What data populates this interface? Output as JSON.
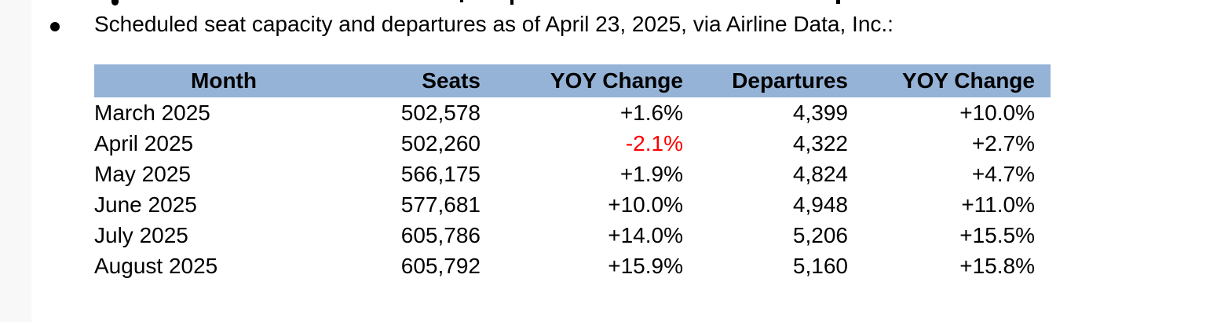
{
  "page": {
    "background": "#ffffff",
    "margin_strip_color": "#f8f8f8"
  },
  "bullet_line": {
    "bullet": "•",
    "text": "Scheduled seat capacity and departures as of April 23, 2025, via Airline Data, Inc.:"
  },
  "table": {
    "header_bg": "#95b3d7",
    "negative_color": "#ff0000",
    "columns": [
      "Month",
      "Seats",
      "YOY Change",
      "Departures",
      "YOY Change"
    ],
    "rows": [
      {
        "month": "March 2025",
        "seats": "502,578",
        "seats_yoy": "+1.6%",
        "departures": "4,399",
        "departures_yoy": "+10.0%"
      },
      {
        "month": "April 2025",
        "seats": "502,260",
        "seats_yoy": "-2.1%",
        "departures": "4,322",
        "departures_yoy": "+2.7%"
      },
      {
        "month": "May 2025",
        "seats": "566,175",
        "seats_yoy": "+1.9%",
        "departures": "4,824",
        "departures_yoy": "+4.7%"
      },
      {
        "month": "June 2025",
        "seats": "577,681",
        "seats_yoy": "+10.0%",
        "departures": "4,948",
        "departures_yoy": "+11.0%"
      },
      {
        "month": "July 2025",
        "seats": "605,786",
        "seats_yoy": "+14.0%",
        "departures": "5,206",
        "departures_yoy": "+15.5%"
      },
      {
        "month": "August 2025",
        "seats": "605,792",
        "seats_yoy": "+15.9%",
        "departures": "5,160",
        "departures_yoy": "+15.8%"
      }
    ]
  }
}
